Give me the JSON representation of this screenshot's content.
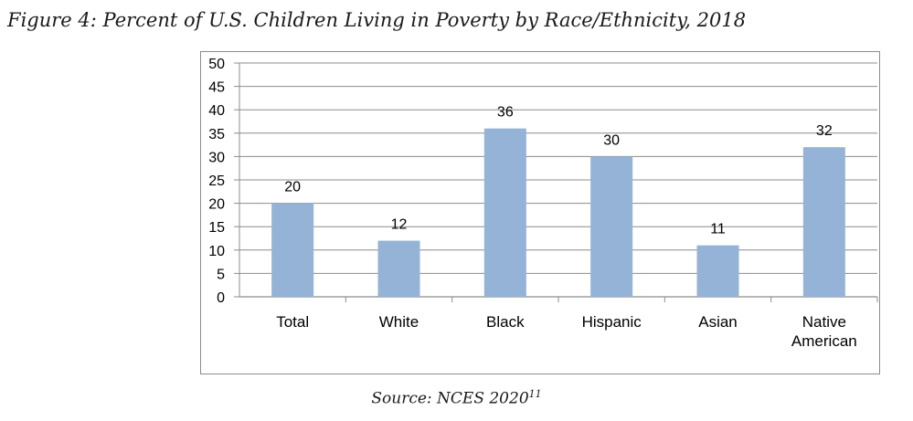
{
  "figure_title": "Figure 4: Percent of U.S. Children Living in Poverty by Race/Ethnicity, 2018",
  "source": {
    "text": "Source: NCES 2020",
    "footnote": "11"
  },
  "colors": {
    "bar": "#95b3d7",
    "grid": "#8c8c8c",
    "text": "#000000"
  },
  "chart_data": {
    "type": "bar",
    "title": "",
    "xlabel": "",
    "ylabel": "",
    "ylim": [
      0,
      50
    ],
    "yticks": [
      0,
      5,
      10,
      15,
      20,
      25,
      30,
      35,
      40,
      45,
      50
    ],
    "categories": [
      "Total",
      "White",
      "Black",
      "Hispanic",
      "Asian",
      "Native American"
    ],
    "category_lines": [
      [
        "Total"
      ],
      [
        "White"
      ],
      [
        "Black"
      ],
      [
        "Hispanic"
      ],
      [
        "Asian"
      ],
      [
        "Native",
        "American"
      ]
    ],
    "values": [
      20,
      12,
      36,
      30,
      11,
      32
    ],
    "data_labels": true,
    "grid": true,
    "legend": "none"
  }
}
